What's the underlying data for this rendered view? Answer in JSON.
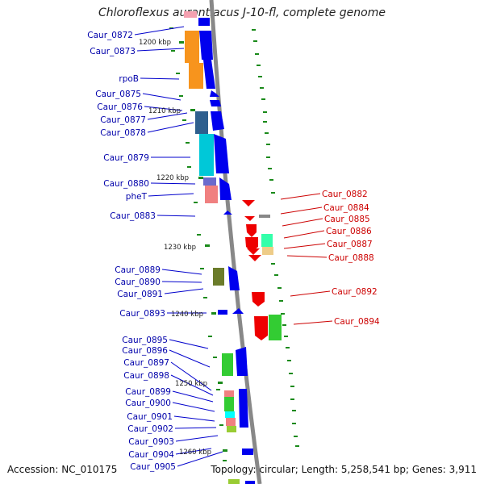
{
  "title": "Chloroflexus aurantiacus J-10-fl, complete genome",
  "footer": {
    "accession": "Accession: NC_010175",
    "summary": "Topology: circular; Length: 5,258,541 bp; Genes: 3,911"
  },
  "kbp_labels": [
    "1200 kbp",
    "1210 kbp",
    "1220 kbp",
    "1230 kbp",
    "1240 kbp",
    "1250 kbp",
    "1260 kbp"
  ],
  "left_labels": [
    "Caur_0872",
    "Caur_0873",
    "rpoB",
    "Caur_0875",
    "Caur_0876",
    "Caur_0877",
    "Caur_0878",
    "Caur_0879",
    "Caur_0880",
    "pheT",
    "Caur_0883",
    "Caur_0889",
    "Caur_0890",
    "Caur_0891",
    "Caur_0893",
    "Caur_0895",
    "Caur_0896",
    "Caur_0897",
    "Caur_0898",
    "Caur_0899",
    "Caur_0900",
    "Caur_0901",
    "Caur_0902",
    "Caur_0903",
    "Caur_0904",
    "Caur_0905"
  ],
  "right_labels": [
    "Caur_0882",
    "Caur_0884",
    "Caur_0885",
    "Caur_0886",
    "Caur_0887",
    "Caur_0888",
    "Caur_0892",
    "Caur_0894"
  ],
  "colors": {
    "forward_strand": "#0000ee",
    "reverse_strand": "#ee0000",
    "backbone": "#888888",
    "gc_skew": "#008800"
  }
}
